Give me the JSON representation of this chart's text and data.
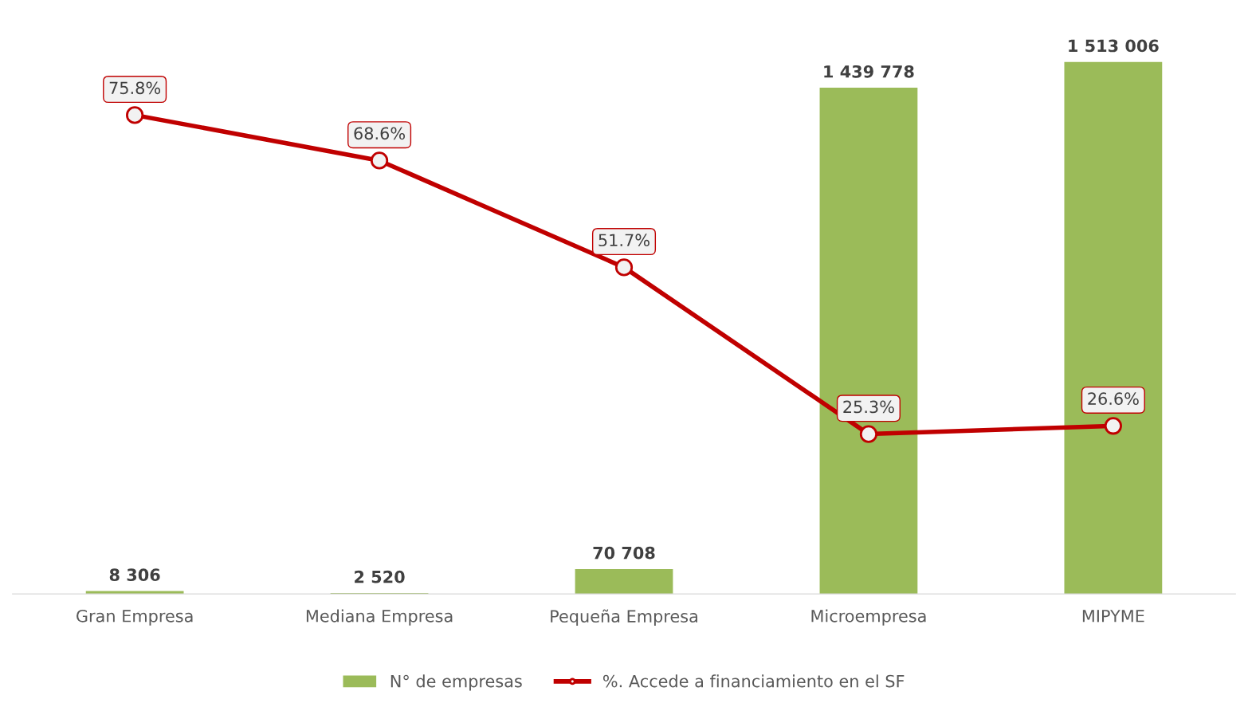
{
  "chart_data": {
    "type": "bar",
    "categories": [
      "Gran Empresa",
      "Mediana Empresa",
      "Pequeña Empresa",
      "Microempresa",
      "MIPYME"
    ],
    "series": [
      {
        "name": "N° de empresas",
        "color": "#9bbb59",
        "values": [
          8306,
          2520,
          70708,
          1439778,
          1513006
        ],
        "value_labels": [
          "8 306",
          "2 520",
          "70 708",
          "1 439 778",
          "1 513 006"
        ]
      },
      {
        "name": "%. Accede a financiamiento en el SF",
        "type": "line",
        "axis": "y2",
        "color": "#c00000",
        "values": [
          75.8,
          68.6,
          51.7,
          25.3,
          26.6
        ],
        "value_labels": [
          "75.8%",
          "68.6%",
          "51.7%",
          "25.3%",
          "26.6%"
        ]
      }
    ],
    "tick_labels": "x",
    "legend": "bottom",
    "marker": "circle",
    "line_style": "solid",
    "grid": false
  }
}
